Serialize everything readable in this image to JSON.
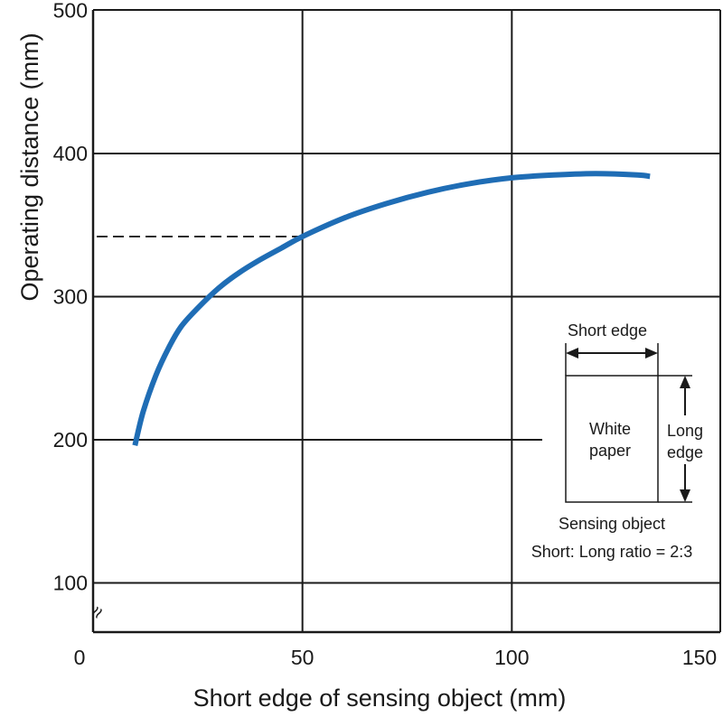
{
  "chart_data": {
    "type": "line",
    "title": "",
    "xlabel": "Short edge of sensing object (mm)",
    "ylabel": "Operating distance (mm)",
    "xlim": [
      0,
      150
    ],
    "ylim": [
      0,
      500
    ],
    "y_axis_break": true,
    "x_ticks": [
      "0",
      "50",
      "100",
      "150"
    ],
    "y_ticks": [
      "100",
      "200",
      "300",
      "400",
      "500"
    ],
    "grid": true,
    "series": [
      {
        "color": "#1f6db5",
        "x": [
          10,
          12,
          15,
          18,
          21,
          25,
          30,
          35,
          40,
          45,
          50,
          60,
          70,
          80,
          90,
          100,
          110,
          120,
          130,
          133
        ],
        "y": [
          196,
          220,
          245,
          264,
          279,
          292,
          306,
          317,
          326,
          334,
          342,
          355,
          365,
          373,
          379,
          383,
          385,
          386,
          385,
          384
        ]
      }
    ],
    "reference": {
      "x": 50,
      "y": 342
    },
    "inset": {
      "short_edge_label": "Short edge",
      "object_label_line1": "White",
      "object_label_line2": "paper",
      "long_edge_line1": "Long",
      "long_edge_line2": "edge",
      "caption_line1": "Sensing object",
      "caption_line2": "Short: Long ratio = 2:3"
    },
    "break_symbol": "≈"
  }
}
